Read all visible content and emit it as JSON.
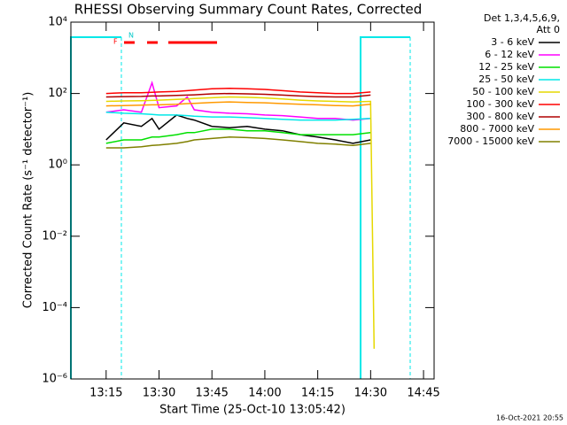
{
  "chart_data": {
    "type": "line",
    "title": "RHESSI Observing Summary Count Rates, Corrected",
    "x_label": "Start Time (25-Oct-10 13:05:42)",
    "y_label": "Corrected Count Rate (s⁻¹ detector⁻¹)",
    "legend_title": [
      "Det 1,3,4,5,6,9,",
      "Att 0"
    ],
    "footer": "16-Oct-2021 20:55",
    "annotations": [
      "F",
      "N"
    ],
    "log_y": true,
    "xlim": [
      "13:05",
      "14:48"
    ],
    "xticks": [
      "13:15",
      "13:30",
      "13:45",
      "14:00",
      "14:15",
      "14:30",
      "14:45"
    ],
    "ylim": [
      1e-06,
      10000
    ],
    "yticks": [
      {
        "value": 1e-06,
        "label": "10⁻⁶"
      },
      {
        "value": 0.0001,
        "label": "10⁻⁴"
      },
      {
        "value": 0.01,
        "label": "10⁻²"
      },
      {
        "value": 1,
        "label": "10⁰"
      },
      {
        "value": 100,
        "label": "10²"
      },
      {
        "value": 10000,
        "label": "10⁴"
      }
    ],
    "x": [
      "13:15",
      "13:20",
      "13:25",
      "13:28",
      "13:30",
      "13:35",
      "13:38",
      "13:40",
      "13:45",
      "13:50",
      "13:55",
      "14:00",
      "14:05",
      "14:10",
      "14:15",
      "14:20",
      "14:25",
      "14:30",
      "14:31"
    ],
    "series": [
      {
        "name": "3 - 6 keV",
        "color": "#000000",
        "values": [
          5,
          15,
          12,
          20,
          10,
          25,
          20,
          18,
          12,
          11,
          12,
          10,
          9,
          7,
          6,
          5,
          4,
          5,
          null
        ]
      },
      {
        "name": "6 - 12 keV",
        "color": "#ff00ff",
        "values": [
          30,
          35,
          30,
          200,
          40,
          45,
          80,
          35,
          30,
          28,
          27,
          25,
          24,
          22,
          20,
          20,
          18,
          20,
          null
        ]
      },
      {
        "name": "12 - 25 keV",
        "color": "#00e000",
        "values": [
          4,
          5,
          5,
          6,
          6,
          7,
          8,
          8,
          10,
          10,
          9,
          9,
          8,
          7,
          7,
          7,
          7,
          8,
          null
        ]
      },
      {
        "name": "25 - 50 keV",
        "color": "#00e8e8",
        "values": [
          30,
          28,
          27,
          26,
          25,
          25,
          24,
          23,
          22,
          22,
          21,
          20,
          19,
          18,
          18,
          18,
          19,
          20,
          null
        ]
      },
      {
        "name": "50 - 100 keV",
        "color": "#e6d800",
        "values": [
          60,
          62,
          63,
          64,
          65,
          68,
          70,
          72,
          76,
          80,
          78,
          75,
          70,
          65,
          62,
          60,
          58,
          60,
          7e-06
        ]
      },
      {
        "name": "100 - 300 keV",
        "color": "#ff0000",
        "values": [
          100,
          105,
          105,
          108,
          110,
          115,
          120,
          125,
          135,
          140,
          135,
          130,
          120,
          110,
          105,
          100,
          100,
          110,
          null
        ]
      },
      {
        "name": "300 - 800 keV",
        "color": "#b00000",
        "values": [
          80,
          82,
          83,
          85,
          85,
          88,
          90,
          92,
          98,
          100,
          98,
          95,
          90,
          85,
          82,
          80,
          80,
          90,
          null
        ]
      },
      {
        "name": "800 - 7000 keV",
        "color": "#ff9900",
        "values": [
          45,
          46,
          47,
          48,
          48,
          50,
          52,
          53,
          56,
          58,
          56,
          55,
          52,
          50,
          48,
          46,
          45,
          50,
          null
        ]
      },
      {
        "name": "7000 - 15000 keV",
        "color": "#808000",
        "values": [
          3,
          3,
          3.2,
          3.5,
          3.6,
          4,
          4.5,
          5,
          5.5,
          6,
          5.8,
          5.5,
          5,
          4.5,
          4,
          3.8,
          3.5,
          4,
          null
        ]
      }
    ]
  }
}
